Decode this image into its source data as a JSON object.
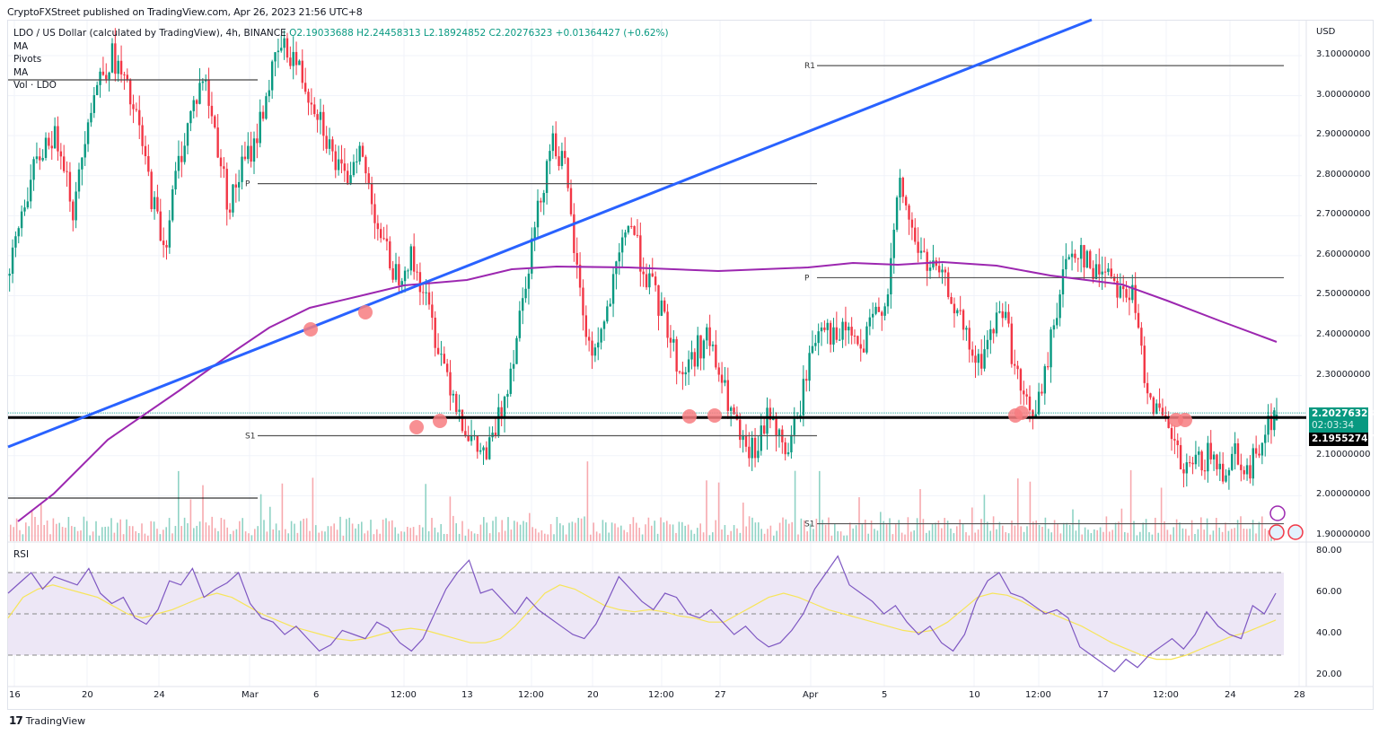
{
  "header": {
    "published": "CryptoFXStreet published on TradingView.com, Apr 26, 2023 21:56 UTC+8"
  },
  "legend": {
    "symbol": "LDO / US Dollar (calculated by TradingView), 4h, BINANCE",
    "open": "O2.19033688",
    "high": "H2.24458313",
    "low": "L2.18924852",
    "close": "C2.20276323",
    "change": "+0.01364427 (+0.62%)",
    "indicators": [
      "MA",
      "Pivots",
      "MA",
      "Vol · LDO"
    ]
  },
  "price_axis": {
    "currency": "USD",
    "ticks": [
      "3.10000000",
      "3.00000000",
      "2.90000000",
      "2.80000000",
      "2.70000000",
      "2.60000000",
      "2.50000000",
      "2.40000000",
      "2.30000000",
      "2.20000000",
      "2.10000000",
      "2.00000000",
      "1.90000000"
    ],
    "current_price": "2.20276323",
    "countdown": "02:03:34",
    "level_price": "2.19552747"
  },
  "rsi": {
    "title": "RSI",
    "ticks": [
      "80.00",
      "60.00",
      "40.00",
      "20.00"
    ]
  },
  "time_axis": {
    "labels": [
      "16",
      "20",
      "24",
      "Mar",
      "6",
      "12:00",
      "13",
      "12:00",
      "20",
      "12:00",
      "27",
      "Apr",
      "5",
      "10",
      "12:00",
      "17",
      "12:00",
      "24",
      "28"
    ]
  },
  "footer": {
    "brand": "TradingView",
    "logo": "17"
  },
  "colors": {
    "up": "#089981",
    "down": "#f23645",
    "trendline": "#2962ff",
    "ma": "#9c27b0",
    "rsi_line": "#7e57c2",
    "rsi_ma": "#f7e55a",
    "rsi_band": "#ede7f6",
    "pivot": "#555555",
    "horizontal_level": "#000000",
    "marker": "#f77c80"
  },
  "chart_data": {
    "type": "candlestick",
    "title": "LDO / US Dollar, 4h, BINANCE",
    "xlabel": "",
    "ylabel": "USD",
    "ylim": [
      1.88,
      3.16
    ],
    "x_ticks": [
      "16",
      "20",
      "24",
      "Mar",
      "6",
      "12:00",
      "13",
      "12:00",
      "20",
      "12:00",
      "27",
      "Apr",
      "5",
      "10",
      "12:00",
      "17",
      "12:00",
      "24",
      "28"
    ],
    "price_path_close": [
      2.55,
      2.72,
      2.82,
      2.9,
      2.88,
      2.7,
      2.95,
      3.05,
      3.1,
      3.02,
      2.92,
      2.75,
      2.62,
      2.82,
      2.95,
      3.05,
      2.9,
      2.72,
      2.82,
      2.88,
      3.02,
      3.12,
      3.1,
      3.02,
      2.96,
      2.85,
      2.78,
      2.88,
      2.75,
      2.62,
      2.55,
      2.6,
      2.52,
      2.4,
      2.3,
      2.2,
      2.12,
      2.1,
      2.2,
      2.35,
      2.55,
      2.72,
      2.9,
      2.82,
      2.55,
      2.35,
      2.42,
      2.55,
      2.7,
      2.58,
      2.5,
      2.42,
      2.3,
      2.35,
      2.4,
      2.3,
      2.2,
      2.1,
      2.12,
      2.22,
      2.1,
      2.18,
      2.35,
      2.45,
      2.38,
      2.42,
      2.35,
      2.45,
      2.5,
      2.78,
      2.65,
      2.58,
      2.55,
      2.5,
      2.4,
      2.32,
      2.4,
      2.48,
      2.3,
      2.2,
      2.25,
      2.45,
      2.6,
      2.62,
      2.55,
      2.58,
      2.52,
      2.5,
      2.3,
      2.2,
      2.15,
      2.05,
      2.08,
      2.1,
      2.06,
      2.12,
      2.05,
      2.15,
      2.2
    ],
    "pivot_levels": [
      {
        "label": "P",
        "value": 2.78,
        "x_from": "Feb 27",
        "x_to": "Mar 31"
      },
      {
        "label": "S1",
        "value": 2.15,
        "x_from": "Feb 27",
        "x_to": "Mar 31"
      },
      {
        "label": "R1",
        "value": 3.075,
        "x_from": "Apr 1",
        "x_to": "Apr 30"
      },
      {
        "label": "P",
        "value": 2.545,
        "x_from": "Apr 1",
        "x_to": "Apr 30"
      },
      {
        "label": "S1",
        "value": 1.93,
        "x_from": "Apr 1",
        "x_to": "Apr 30"
      }
    ],
    "horizontal_level": 2.19552747,
    "current_price": 2.20276323,
    "ma_series_end": 2.39,
    "rsi": {
      "range": [
        20,
        80
      ],
      "bands": [
        30,
        50,
        70
      ],
      "last_value": 60,
      "ma_last_value": 47
    },
    "ohlc_last": {
      "open": 2.19033688,
      "high": 2.24458313,
      "low": 2.18924852,
      "close": 2.20276323,
      "change": 0.01364427,
      "change_pct": 0.62
    }
  }
}
